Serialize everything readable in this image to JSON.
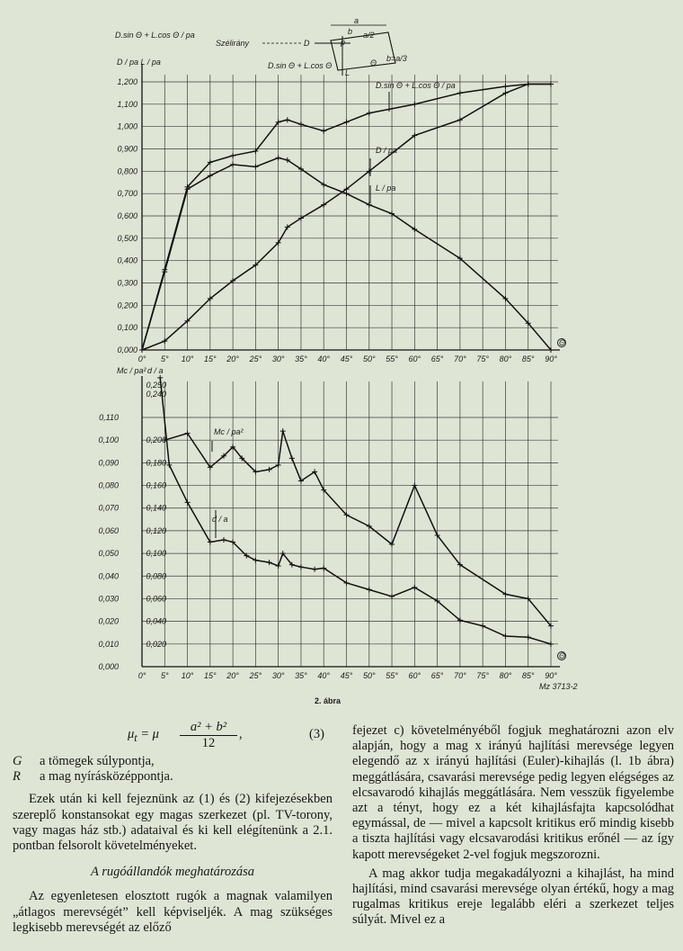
{
  "figure": {
    "caption": "2. ábra",
    "top_y_label": "D.sin Θ + L.cos Θ / pa",
    "top_y_label_2": "D / pa   L / pa",
    "top_annotation_sum": "D.sin Θ + L.cos Θ / pa",
    "top_annotation_d": "D / pa",
    "top_annotation_l": "L / pa",
    "inset_wind": "Szélirány",
    "inset_labels": [
      "D",
      "a",
      "b",
      "a/2",
      "p",
      "L",
      "Θ",
      "D.sin Θ + L.cos Θ",
      "b=a/3"
    ],
    "x_axis_symbol": "Θ",
    "bottom_y_label_left": "Mc / pa²",
    "bottom_y_label_right": "d / a",
    "bottom_annotation_mc": "Mc / pa²",
    "bottom_annotation_da": "d / a",
    "figure_code": "Mz 3713-2"
  },
  "chart_data": [
    {
      "type": "line",
      "title": "",
      "xlabel": "Θ",
      "ylabel": "D/pa, L/pa, (D.sin Θ + L.cos Θ)/pa",
      "x_ticks": [
        "0°",
        "5°",
        "10°",
        "15°",
        "20°",
        "25°",
        "30°",
        "35°",
        "40°",
        "45°",
        "50°",
        "55°",
        "60°",
        "65°",
        "70°",
        "75°",
        "80°",
        "85°",
        "90°"
      ],
      "y_ticks": [
        "0,000",
        "0,100",
        "0,200",
        "0,300",
        "0,400",
        "0,500",
        "0,600",
        "0,700",
        "0,800",
        "0,900",
        "1,000",
        "1,100",
        "1,200"
      ],
      "xlim": [
        0,
        90
      ],
      "ylim": [
        0,
        1.2
      ],
      "grid": true,
      "series": [
        {
          "name": "D.sin Θ + L.cos Θ / pa",
          "x": [
            0,
            5,
            10,
            15,
            20,
            25,
            30,
            32,
            35,
            40,
            45,
            50,
            60,
            70,
            80,
            85,
            90
          ],
          "y": [
            0.0,
            0.36,
            0.73,
            0.84,
            0.87,
            0.89,
            1.02,
            1.03,
            1.01,
            0.98,
            1.02,
            1.06,
            1.1,
            1.15,
            1.18,
            1.19,
            1.19
          ]
        },
        {
          "name": "D / pa",
          "x": [
            0,
            5,
            10,
            15,
            20,
            25,
            30,
            32,
            35,
            40,
            45,
            50,
            60,
            70,
            80,
            85,
            90
          ],
          "y": [
            0.0,
            0.04,
            0.13,
            0.23,
            0.31,
            0.38,
            0.48,
            0.55,
            0.59,
            0.65,
            0.72,
            0.8,
            0.96,
            1.03,
            1.15,
            1.19,
            1.19
          ]
        },
        {
          "name": "L / pa",
          "x": [
            0,
            5,
            10,
            15,
            20,
            25,
            30,
            32,
            35,
            40,
            45,
            50,
            55,
            60,
            70,
            80,
            85,
            90
          ],
          "y": [
            0.0,
            0.35,
            0.72,
            0.78,
            0.83,
            0.82,
            0.86,
            0.85,
            0.81,
            0.74,
            0.7,
            0.65,
            0.61,
            0.54,
            0.41,
            0.23,
            0.12,
            0.0
          ]
        }
      ]
    },
    {
      "type": "line",
      "title": "",
      "xlabel": "Θ",
      "ylabel": "Mc/pa², d/a",
      "x_ticks": [
        "0°",
        "5°",
        "10°",
        "15°",
        "20°",
        "25°",
        "30°",
        "35°",
        "40°",
        "45°",
        "50°",
        "55°",
        "60°",
        "65°",
        "70°",
        "75°",
        "80°",
        "85°",
        "90°"
      ],
      "y_ticks_left": [
        "0,000",
        "0,010",
        "0,020",
        "0,030",
        "0,040",
        "0,050",
        "0,060",
        "0,070",
        "0,080",
        "0,090",
        "0,100",
        "0,110"
      ],
      "y_ticks_right": [
        "0,020",
        "0,040",
        "0,060",
        "0,080",
        "0,100",
        "0,120",
        "0,140",
        "0,160",
        "0,180",
        "0,200",
        "0,240",
        "0,250"
      ],
      "xlim": [
        0,
        90
      ],
      "ylim_left": [
        0,
        0.12
      ],
      "ylim_right": [
        0,
        0.24
      ],
      "grid": true,
      "series": [
        {
          "name": "Mc / pa²",
          "axis": "left",
          "x": [
            5,
            10,
            15,
            18,
            20,
            22,
            25,
            28,
            30,
            31,
            33,
            35,
            38,
            40,
            45,
            50,
            55,
            60,
            65,
            70,
            80,
            85,
            90
          ],
          "y": [
            0.1,
            0.103,
            0.088,
            0.093,
            0.097,
            0.092,
            0.086,
            0.087,
            0.089,
            0.104,
            0.092,
            0.082,
            0.086,
            0.078,
            0.067,
            0.062,
            0.054,
            0.08,
            0.058,
            0.045,
            0.032,
            0.03,
            0.018
          ]
        },
        {
          "name": "d / a",
          "axis": "right",
          "x": [
            4,
            6,
            10,
            15,
            18,
            20,
            23,
            25,
            28,
            30,
            31,
            33,
            35,
            38,
            40,
            45,
            50,
            55,
            60,
            65,
            70,
            75,
            80,
            85,
            90
          ],
          "y": [
            0.255,
            0.178,
            0.145,
            0.11,
            0.112,
            0.11,
            0.098,
            0.094,
            0.092,
            0.089,
            0.1,
            0.09,
            0.088,
            0.086,
            0.087,
            0.074,
            0.068,
            0.062,
            0.07,
            0.058,
            0.041,
            0.036,
            0.027,
            0.026,
            0.02
          ]
        }
      ]
    }
  ],
  "text": {
    "formula_lhs": "μ",
    "formula_sub": "t",
    "formula_eq": " = μ ",
    "formula_num": "a² + b²",
    "formula_den": "12",
    "formula_tail": ",",
    "formula_no": "(3)",
    "def_g_sym": "G",
    "def_g_text": "a tömegek súlypontja,",
    "def_r_sym": "R",
    "def_r_text": "a mag nyírásközéppontja.",
    "left_para_1": "Ezek után ki kell fejeznünk az (1) és (2) kifejezésekben szereplő konstansokat egy magas szerkezet (pl. TV-torony, vagy magas ház stb.) adataival és ki kell elégítenünk a 2.1. pontban felsorolt követelményeket.",
    "section_title": "A rugóállandók meghatározása",
    "left_para_2": "Az egyenletesen elosztott rugók a magnak valamilyen „átlagos merevségét” kell képviseljék. A mag szükséges legkisebb merevségét az előző",
    "right_para_1": "fejezet c) követelményéből fogjuk meghatározni azon elv alapján, hogy a mag x irányú hajlítási merevsége legyen elegendő az x irányú hajlítási (Euler)-kihajlás (l. 1b ábra) meggátlására, csavarási merevsége pedig legyen elégséges az elcsavarodó kihajlás meggátlására. Nem vesszük figyelembe azt a tényt, hogy ez a két kihajlásfajta kapcsolódhat egymással, de — mivel a kapcsolt kritikus erő mindig kisebb a tiszta hajlítási vagy elcsavarodási kritikus erőnél — az így kapott merevségeket 2-vel fogjuk megszorozni.",
    "right_para_2": "A mag akkor tudja megakadályozni a kihajlást, ha mind hajlítási, mind csavarási merevsége olyan értékű, hogy a mag rugalmas kritikus ereje legalább eléri a szerkezet teljes súlyát. Mivel ez a"
  }
}
